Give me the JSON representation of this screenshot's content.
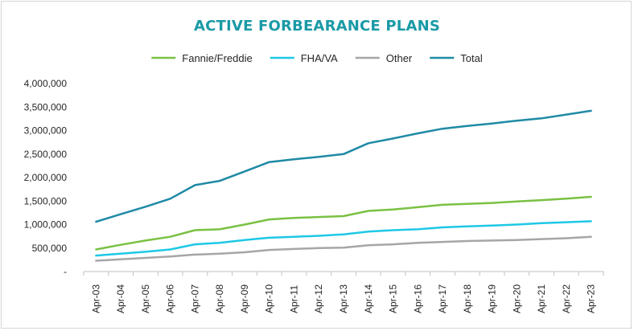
{
  "chart_data": {
    "type": "line",
    "title": "ACTIVE FORBEARANCE PLANS",
    "xlabel": "",
    "ylabel": "",
    "ylim": [
      0,
      4000000
    ],
    "yticks": [
      0,
      500000,
      1000000,
      1500000,
      2000000,
      2500000,
      3000000,
      3500000,
      4000000
    ],
    "ytick_labels": [
      "-",
      "500,000",
      "1,000,000",
      "1,500,000",
      "2,000,000",
      "2,500,000",
      "3,000,000",
      "3,500,000",
      "4,000,000"
    ],
    "categories": [
      "Apr-03",
      "Apr-04",
      "Apr-05",
      "Apr-06",
      "Apr-07",
      "Apr-08",
      "Apr-09",
      "Apr-10",
      "Apr-11",
      "Apr-12",
      "Apr-13",
      "Apr-14",
      "Apr-15",
      "Apr-16",
      "Apr-17",
      "Apr-18",
      "Apr-19",
      "Apr-20",
      "Apr-21",
      "Apr-22",
      "Apr-23"
    ],
    "legend_position": "top-center",
    "grid": false,
    "series": [
      {
        "name": "Fannie/Freddie",
        "color": "#7ac143",
        "values": [
          470000,
          570000,
          660000,
          740000,
          880000,
          900000,
          1000000,
          1110000,
          1140000,
          1160000,
          1180000,
          1290000,
          1320000,
          1370000,
          1420000,
          1440000,
          1460000,
          1490000,
          1520000,
          1550000,
          1590000
        ]
      },
      {
        "name": "FHA/VA",
        "color": "#1ec8e6",
        "values": [
          340000,
          380000,
          420000,
          470000,
          580000,
          610000,
          670000,
          720000,
          740000,
          760000,
          790000,
          850000,
          880000,
          900000,
          940000,
          960000,
          980000,
          1000000,
          1030000,
          1050000,
          1070000
        ]
      },
      {
        "name": "Other",
        "color": "#a6a6a6",
        "values": [
          230000,
          260000,
          290000,
          320000,
          360000,
          380000,
          410000,
          460000,
          480000,
          500000,
          510000,
          560000,
          580000,
          610000,
          630000,
          650000,
          660000,
          670000,
          690000,
          710000,
          740000
        ]
      },
      {
        "name": "Total",
        "color": "#1f8aa6",
        "values": [
          1060000,
          1220000,
          1380000,
          1550000,
          1840000,
          1930000,
          2130000,
          2330000,
          2390000,
          2440000,
          2500000,
          2730000,
          2830000,
          2940000,
          3040000,
          3100000,
          3150000,
          3210000,
          3260000,
          3340000,
          3420000
        ]
      }
    ]
  }
}
